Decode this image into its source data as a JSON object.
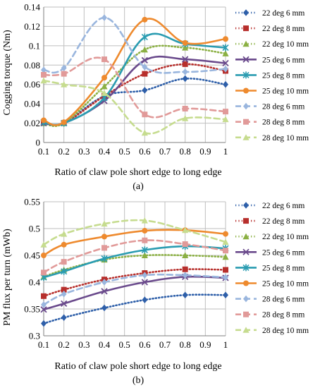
{
  "colors": {
    "22 deg": "#2e5fa9",
    "22 deg 8 mm": "#b72f2c",
    "22 deg 10 mm": "#8bb043",
    "25 deg 6 mm": "#6a4a8c",
    "25 deg 8 mm": "#2a9cb1",
    "25 deg 10 mm": "#ee8a2e",
    "28 deg 6 mm": "#9ab6de",
    "28 deg 8 mm": "#e19a99",
    "28 deg 10 mm": "#c6dc8f",
    "grid": "#bfbfbf"
  },
  "chart_data": [
    {
      "type": "line",
      "sub_label": "(a)",
      "xlabel": "Ratio of claw pole short edge to long edge",
      "ylabel": "Cogging torque (Nm)",
      "xlim": [
        0.1,
        1.0
      ],
      "ylim": [
        0,
        0.14
      ],
      "x_ticks": [
        "0.1",
        "0.2",
        "0.3",
        "0.4",
        "0.5",
        "0.6",
        "0.7",
        "0.8",
        "0.9",
        "1"
      ],
      "y_ticks": [
        "0",
        "0.02",
        "0.04",
        "0.06",
        "0.08",
        "0.1",
        "0.12",
        "0.14"
      ],
      "grid": true,
      "legend_position": "right",
      "series": [
        {
          "name": "22 deg 6 mm",
          "marker": "diamond",
          "dash": "dot",
          "x": [
            0.1,
            0.2,
            0.4,
            0.6,
            0.8,
            1.0
          ],
          "values": [
            0.02,
            0.02,
            0.048,
            0.054,
            0.066,
            0.06
          ]
        },
        {
          "name": "22 deg 8 mm",
          "marker": "square",
          "dash": "dot",
          "x": [
            0.1,
            0.2,
            0.4,
            0.6,
            0.8,
            1.0
          ],
          "values": [
            0.02,
            0.02,
            0.048,
            0.071,
            0.081,
            0.074
          ]
        },
        {
          "name": "22 deg 10 mm",
          "marker": "triangle",
          "dash": "dot",
          "x": [
            0.1,
            0.2,
            0.4,
            0.6,
            0.8,
            1.0
          ],
          "values": [
            0.02,
            0.02,
            0.058,
            0.096,
            0.098,
            0.092
          ]
        },
        {
          "name": "25 deg 6 mm",
          "marker": "x",
          "dash": "solid",
          "x": [
            0.1,
            0.2,
            0.4,
            0.6,
            0.8,
            1.0
          ],
          "values": [
            0.02,
            0.02,
            0.043,
            0.085,
            0.086,
            0.082
          ]
        },
        {
          "name": "25 deg 8 mm",
          "marker": "star",
          "dash": "solid",
          "x": [
            0.1,
            0.2,
            0.4,
            0.6,
            0.8,
            1.0
          ],
          "values": [
            0.021,
            0.02,
            0.046,
            0.109,
            0.102,
            0.098
          ]
        },
        {
          "name": "25 deg 10 mm",
          "marker": "circle",
          "dash": "solid",
          "x": [
            0.1,
            0.2,
            0.4,
            0.6,
            0.8,
            1.0
          ],
          "values": [
            0.023,
            0.021,
            0.067,
            0.127,
            0.103,
            0.107
          ]
        },
        {
          "name": "28 deg 6 mm",
          "marker": "diamond",
          "dash": "dash",
          "x": [
            0.1,
            0.2,
            0.4,
            0.6,
            0.8,
            1.0
          ],
          "values": [
            0.075,
            0.077,
            0.129,
            0.078,
            0.073,
            0.076
          ]
        },
        {
          "name": "28 deg 8 mm",
          "marker": "square",
          "dash": "dash",
          "x": [
            0.1,
            0.2,
            0.4,
            0.6,
            0.8,
            1.0
          ],
          "values": [
            0.07,
            0.071,
            0.086,
            0.029,
            0.035,
            0.032
          ]
        },
        {
          "name": "28 deg 10 mm",
          "marker": "triangle",
          "dash": "dash",
          "x": [
            0.1,
            0.2,
            0.4,
            0.6,
            0.8,
            1.0
          ],
          "values": [
            0.064,
            0.06,
            0.051,
            0.01,
            0.025,
            0.024
          ]
        }
      ]
    },
    {
      "type": "line",
      "sub_label": "(b)",
      "xlabel": "Ratio of claw pole short edge to long edge",
      "ylabel": "PM flux per turn (mWb)",
      "xlim": [
        0.1,
        1.0
      ],
      "ylim": [
        0.3,
        0.55
      ],
      "x_ticks": [
        "0.1",
        "0.2",
        "0.3",
        "0.4",
        "0.5",
        "0.6",
        "0.7",
        "0.8",
        "0.9",
        "1"
      ],
      "y_ticks": [
        "0.3",
        "0.35",
        "0.4",
        "0.45",
        "0.5",
        "0.55"
      ],
      "grid": true,
      "legend_position": "right",
      "series": [
        {
          "name": "22 deg 6 mm",
          "marker": "diamond",
          "dash": "dot",
          "x": [
            0.1,
            0.2,
            0.4,
            0.6,
            0.8,
            1.0
          ],
          "values": [
            0.323,
            0.334,
            0.352,
            0.367,
            0.376,
            0.376
          ]
        },
        {
          "name": "22 deg 8 mm",
          "marker": "square",
          "dash": "dot",
          "x": [
            0.1,
            0.2,
            0.4,
            0.6,
            0.8,
            1.0
          ],
          "values": [
            0.374,
            0.386,
            0.405,
            0.417,
            0.424,
            0.423
          ]
        },
        {
          "name": "22 deg 10 mm",
          "marker": "triangle",
          "dash": "dot",
          "x": [
            0.1,
            0.2,
            0.4,
            0.6,
            0.8,
            1.0
          ],
          "values": [
            0.41,
            0.423,
            0.442,
            0.45,
            0.45,
            0.447
          ]
        },
        {
          "name": "25 deg 6 mm",
          "marker": "x",
          "dash": "solid",
          "x": [
            0.1,
            0.2,
            0.4,
            0.6,
            0.8,
            1.0
          ],
          "values": [
            0.349,
            0.36,
            0.383,
            0.4,
            0.41,
            0.408
          ]
        },
        {
          "name": "25 deg 8 mm",
          "marker": "star",
          "dash": "solid",
          "x": [
            0.1,
            0.2,
            0.4,
            0.6,
            0.8,
            1.0
          ],
          "values": [
            0.409,
            0.42,
            0.444,
            0.46,
            0.467,
            0.463
          ]
        },
        {
          "name": "25 deg 10 mm",
          "marker": "circle",
          "dash": "solid",
          "x": [
            0.1,
            0.2,
            0.4,
            0.6,
            0.8,
            1.0
          ],
          "values": [
            0.45,
            0.47,
            0.485,
            0.496,
            0.497,
            0.49
          ]
        },
        {
          "name": "28 deg 6 mm",
          "marker": "diamond",
          "dash": "dash",
          "x": [
            0.1,
            0.2,
            0.4,
            0.6,
            0.8,
            1.0
          ],
          "values": [
            0.358,
            0.378,
            0.4,
            0.413,
            0.413,
            0.409
          ]
        },
        {
          "name": "28 deg 8 mm",
          "marker": "square",
          "dash": "dash",
          "x": [
            0.1,
            0.2,
            0.4,
            0.6,
            0.8,
            1.0
          ],
          "values": [
            0.418,
            0.438,
            0.464,
            0.478,
            0.471,
            0.459
          ]
        },
        {
          "name": "28 deg 10 mm",
          "marker": "triangle",
          "dash": "dash",
          "x": [
            0.1,
            0.2,
            0.4,
            0.6,
            0.8,
            1.0
          ],
          "values": [
            0.47,
            0.49,
            0.509,
            0.515,
            0.497,
            0.475
          ]
        }
      ]
    }
  ]
}
